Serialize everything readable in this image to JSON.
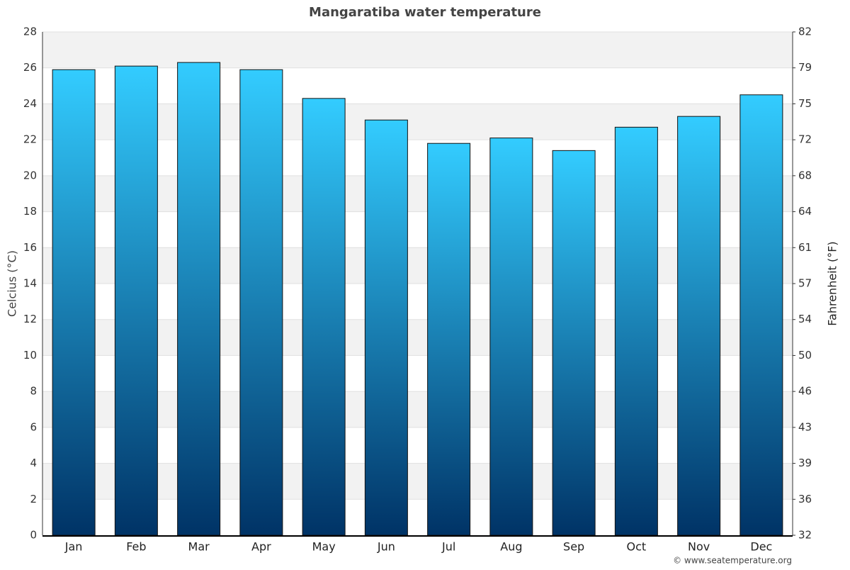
{
  "chart_data": {
    "type": "bar",
    "title": "Mangaratiba water temperature",
    "categories": [
      "Jan",
      "Feb",
      "Mar",
      "Apr",
      "May",
      "Jun",
      "Jul",
      "Aug",
      "Sep",
      "Oct",
      "Nov",
      "Dec"
    ],
    "values": [
      25.9,
      26.1,
      26.3,
      25.9,
      24.3,
      23.1,
      21.8,
      22.1,
      21.4,
      22.7,
      23.3,
      24.5
    ],
    "gradient_colors": [
      "#33ccff",
      "#003366"
    ],
    "ylabel": "Celcius (°C)",
    "y2label": "Fahrenheit (°F)",
    "ylim": [
      0,
      28
    ],
    "yticks": [
      0,
      2,
      4,
      6,
      8,
      10,
      12,
      14,
      16,
      18,
      20,
      22,
      24,
      26,
      28
    ],
    "y2lim": [
      32,
      82.4
    ],
    "y2ticks": [
      32,
      {
        "value": 35.6,
        "label": "36"
      },
      {
        "value": 39.2,
        "label": "39"
      },
      {
        "value": 42.8,
        "label": "43"
      },
      {
        "value": 46.4,
        "label": "46"
      },
      50,
      {
        "value": 53.6,
        "label": "54"
      },
      {
        "value": 57.2,
        "label": "57"
      },
      {
        "value": 60.8,
        "label": "61"
      },
      {
        "value": 64.4,
        "label": "64"
      },
      68,
      {
        "value": 71.6,
        "label": "72"
      },
      {
        "value": 75.2,
        "label": "75"
      },
      {
        "value": 78.8,
        "label": "79"
      },
      {
        "value": 82.4,
        "label": "82"
      }
    ],
    "grid": true,
    "credit": "© www.seatemperature.org"
  }
}
